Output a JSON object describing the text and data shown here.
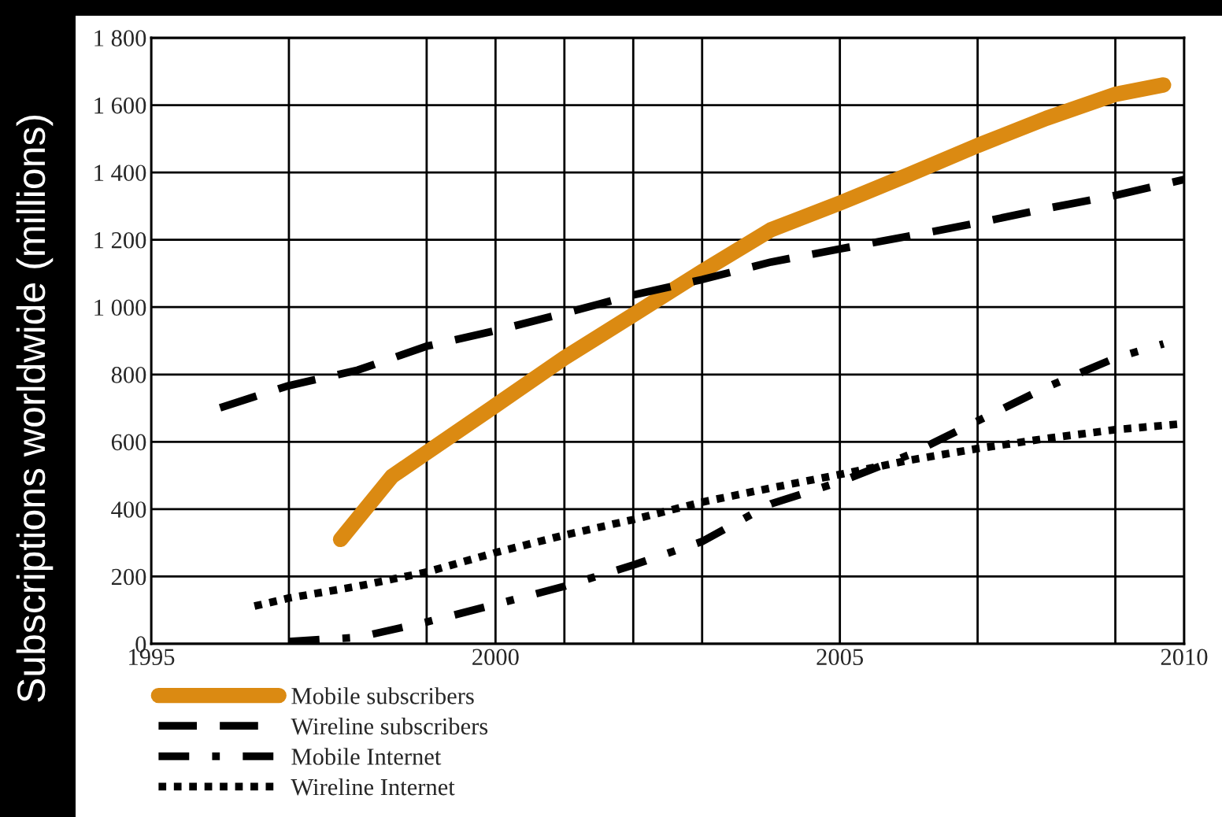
{
  "chart_data": {
    "type": "line",
    "ylabel": "Subscriptions worldwide (millions)",
    "xlim": [
      1995,
      2010
    ],
    "xticks": [
      1995,
      {
        "value": 1997,
        "label": null
      },
      {
        "value": 1999,
        "label": null
      },
      2000,
      {
        "value": 2001,
        "label": null
      },
      {
        "value": 2002,
        "label": null
      },
      {
        "value": 2003,
        "label": null
      },
      2005,
      {
        "value": 2007,
        "label": null
      },
      {
        "value": 2009,
        "label": null
      },
      2010
    ],
    "ylim": [
      0,
      1800
    ],
    "yticks": [
      0,
      {
        "value": 200,
        "label": "200"
      },
      {
        "value": 400,
        "label": "400"
      },
      {
        "value": 600,
        "label": "600"
      },
      {
        "value": 800,
        "label": "800"
      },
      {
        "value": 1000,
        "label": "1 000"
      },
      {
        "value": 1200,
        "label": "1 200"
      },
      {
        "value": 1400,
        "label": "1 400"
      },
      {
        "value": 1600,
        "label": "1 600"
      },
      {
        "value": 1800,
        "label": "1 800"
      }
    ],
    "grid": true,
    "legend": "bottom",
    "marker": "none",
    "series": [
      {
        "name": "Mobile subscribers",
        "color": "#db8a12",
        "line_style": "solid",
        "x": [
          1997.75,
          1998.5,
          1999,
          2000,
          2001,
          2002,
          2003,
          2004,
          2005,
          2006,
          2007,
          2008,
          2009,
          2009.7
        ],
        "values": [
          310,
          498,
          568,
          708,
          849,
          977,
          1106,
          1230,
          1309,
          1393,
          1480,
          1561,
          1632,
          1660
        ]
      },
      {
        "name": "Wireline subscribers",
        "color": "#000000",
        "line_style": "dashed",
        "x": [
          1996,
          1997,
          1998,
          1999,
          2000,
          2001,
          2002,
          2003,
          2004,
          2005,
          2006,
          2007,
          2008,
          2009,
          2010
        ],
        "values": [
          701,
          767,
          813,
          884,
          930,
          982,
          1036,
          1082,
          1134,
          1173,
          1211,
          1250,
          1293,
          1332,
          1379
        ]
      },
      {
        "name": "Mobile Internet",
        "color": "#000000",
        "line_style": "dashdot",
        "x": [
          1997,
          1998,
          1999,
          2000,
          2001,
          2002,
          2003,
          2004,
          2005,
          2006,
          2007,
          2008,
          2009,
          2009.7
        ],
        "values": [
          7,
          19,
          65,
          117,
          171,
          234,
          304,
          416,
          481,
          561,
          662,
          762,
          849,
          891
        ]
      },
      {
        "name": "Wireline Internet",
        "color": "#000000",
        "line_style": "dotted",
        "x": [
          1996.5,
          1997,
          1998,
          1999,
          2000,
          2001,
          2002,
          2003,
          2004,
          2005,
          2006,
          2007,
          2008,
          2009,
          2010
        ],
        "values": [
          112,
          136,
          171,
          213,
          271,
          323,
          369,
          421,
          463,
          503,
          545,
          580,
          610,
          636,
          654
        ]
      }
    ]
  }
}
